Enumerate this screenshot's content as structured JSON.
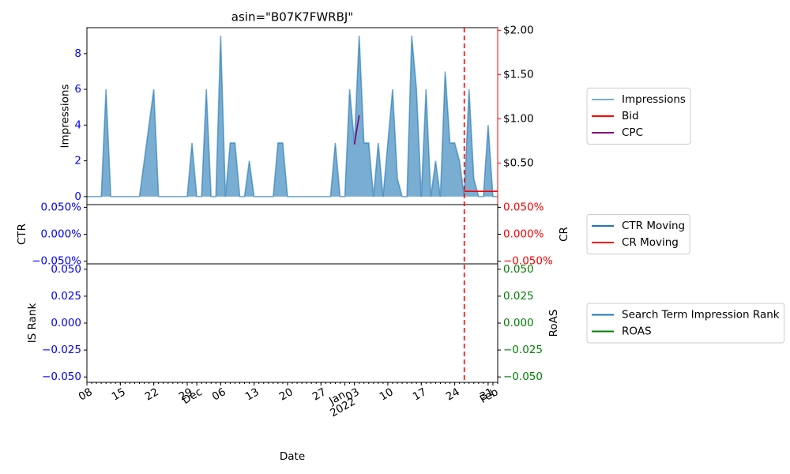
{
  "chart_data": [
    {
      "type": "area",
      "title": "asin=\"B07K7FWRBJ\"",
      "ylabel": "Impressions",
      "x": [
        "2021-11-08",
        "2021-11-09",
        "2021-11-10",
        "2021-11-11",
        "2021-11-12",
        "2021-11-13",
        "2021-11-14",
        "2021-11-15",
        "2021-11-16",
        "2021-11-17",
        "2021-11-18",
        "2021-11-19",
        "2021-11-20",
        "2021-11-21",
        "2021-11-22",
        "2021-11-23",
        "2021-11-24",
        "2021-11-25",
        "2021-11-26",
        "2021-11-27",
        "2021-11-28",
        "2021-11-29",
        "2021-11-30",
        "2021-12-01",
        "2021-12-02",
        "2021-12-03",
        "2021-12-04",
        "2021-12-05",
        "2021-12-06",
        "2021-12-07",
        "2021-12-08",
        "2021-12-09",
        "2021-12-10",
        "2021-12-11",
        "2021-12-12",
        "2021-12-13",
        "2021-12-14",
        "2021-12-15",
        "2021-12-16",
        "2021-12-17",
        "2021-12-18",
        "2021-12-19",
        "2021-12-20",
        "2021-12-21",
        "2021-12-22",
        "2021-12-23",
        "2021-12-24",
        "2021-12-25",
        "2021-12-26",
        "2021-12-27",
        "2021-12-28",
        "2021-12-29",
        "2021-12-30",
        "2021-12-31",
        "2022-01-01",
        "2022-01-02",
        "2022-01-03",
        "2022-01-04",
        "2022-01-05",
        "2022-01-06",
        "2022-01-07",
        "2022-01-08",
        "2022-01-09",
        "2022-01-10",
        "2022-01-11",
        "2022-01-12",
        "2022-01-13",
        "2022-01-14",
        "2022-01-15",
        "2022-01-16",
        "2022-01-17",
        "2022-01-18",
        "2022-01-19",
        "2022-01-20",
        "2022-01-21",
        "2022-01-22",
        "2022-01-23",
        "2022-01-24",
        "2022-01-25",
        "2022-01-26",
        "2022-01-27",
        "2022-01-28",
        "2022-01-29",
        "2022-01-30",
        "2022-01-31",
        "2022-02-01",
        "2022-02-02"
      ],
      "series": [
        {
          "name": "Impressions",
          "color": "#1f77b4",
          "values": [
            0,
            0,
            0,
            0,
            6,
            0,
            0,
            0,
            0,
            0,
            0,
            0,
            2,
            4,
            6,
            0,
            0,
            0,
            0,
            0,
            0,
            0,
            3,
            0,
            0,
            6,
            0,
            0,
            9,
            0,
            3,
            3,
            0,
            0,
            2,
            0,
            0,
            0,
            0,
            0,
            3,
            3,
            0,
            0,
            0,
            0,
            0,
            0,
            0,
            0,
            0,
            0,
            3,
            0,
            0,
            6,
            3,
            9,
            3,
            3,
            0,
            3,
            0,
            3,
            6,
            1,
            0,
            0,
            9,
            6,
            0,
            6,
            0,
            2,
            0,
            7,
            3,
            3,
            2,
            0,
            6,
            1,
            0,
            0,
            4,
            0,
            0
          ]
        },
        {
          "name": "Bid",
          "color": "red",
          "type": "line",
          "axis": "y2",
          "values": [
            null,
            null,
            null,
            null,
            null,
            null,
            null,
            null,
            null,
            null,
            null,
            null,
            null,
            null,
            null,
            null,
            null,
            null,
            null,
            null,
            null,
            null,
            null,
            null,
            null,
            null,
            null,
            null,
            null,
            null,
            null,
            null,
            null,
            null,
            null,
            null,
            null,
            null,
            null,
            null,
            null,
            null,
            null,
            null,
            null,
            null,
            null,
            null,
            null,
            null,
            null,
            null,
            null,
            null,
            null,
            null,
            null,
            null,
            null,
            null,
            null,
            null,
            null,
            null,
            null,
            null,
            null,
            null,
            null,
            null,
            null,
            null,
            null,
            null,
            null,
            null,
            null,
            null,
            null,
            0.18,
            0.18,
            0.18,
            0.18,
            0.18,
            0.18,
            0.18,
            0.18
          ]
        },
        {
          "name": "CPC",
          "color": "purple",
          "type": "line",
          "axis": "y2",
          "values": [
            null,
            null,
            null,
            null,
            null,
            null,
            null,
            null,
            null,
            null,
            null,
            null,
            null,
            null,
            null,
            null,
            null,
            null,
            null,
            null,
            null,
            null,
            null,
            null,
            null,
            null,
            null,
            null,
            null,
            null,
            null,
            null,
            null,
            null,
            null,
            null,
            null,
            null,
            null,
            null,
            null,
            null,
            null,
            null,
            null,
            null,
            null,
            null,
            null,
            null,
            null,
            null,
            null,
            null,
            null,
            null,
            0.71,
            1.04,
            null,
            null,
            null,
            null,
            null,
            null,
            null,
            null,
            null,
            null,
            null,
            null,
            null,
            null,
            null,
            null,
            null,
            null,
            null,
            null,
            null,
            null,
            null,
            null,
            null,
            null,
            null,
            null,
            null
          ]
        }
      ],
      "ylim": [
        -0.45,
        9.45
      ],
      "yticks": [
        0,
        2,
        4,
        6,
        8
      ],
      "y2lim": [
        0.03,
        2.03
      ],
      "y2ticks": [
        {
          "value": 0.5,
          "label": "$0.50"
        },
        {
          "value": 1,
          "label": "$1.00"
        },
        {
          "value": 1.5,
          "label": "$1.50"
        },
        {
          "value": 2,
          "label": "$2.00"
        }
      ],
      "vline": "2022-01-26",
      "vline_color": "red",
      "legend": "right"
    },
    {
      "type": "line",
      "ylabel": "CTR",
      "y2label": "CR",
      "series": [
        {
          "name": "CTR Moving",
          "color": "#1f77b4",
          "values": [
            null,
            null,
            null,
            null,
            null,
            null,
            null,
            null,
            null,
            null,
            null,
            null,
            null,
            null,
            null,
            null,
            null,
            null,
            null,
            null,
            null,
            null,
            null,
            null,
            null,
            null,
            null,
            null,
            null,
            null,
            null,
            null,
            null,
            null,
            null,
            null,
            null,
            null,
            null,
            null,
            null,
            null,
            null,
            null,
            null,
            null,
            null,
            null,
            null,
            null,
            null,
            null,
            null,
            null,
            null,
            null,
            null,
            null,
            null,
            null,
            null,
            null,
            null,
            null,
            null,
            null,
            null,
            null,
            null,
            null,
            null,
            null,
            null,
            null,
            null,
            null,
            null,
            null,
            null,
            null,
            null,
            null,
            null,
            null,
            null,
            null,
            null
          ]
        },
        {
          "name": "CR Moving",
          "color": "red",
          "axis": "y2",
          "values": [
            null,
            null,
            null,
            null,
            null,
            null,
            null,
            null,
            null,
            null,
            null,
            null,
            null,
            null,
            null,
            null,
            null,
            null,
            null,
            null,
            null,
            null,
            null,
            null,
            null,
            null,
            null,
            null,
            null,
            null,
            null,
            null,
            null,
            null,
            null,
            null,
            null,
            null,
            null,
            null,
            null,
            null,
            null,
            null,
            null,
            null,
            null,
            null,
            null,
            null,
            null,
            null,
            null,
            null,
            null,
            null,
            null,
            null,
            null,
            null,
            null,
            null,
            null,
            null,
            null,
            null,
            null,
            null,
            null,
            null,
            null,
            null,
            null,
            null,
            null,
            null,
            null,
            null,
            null,
            null,
            null,
            null,
            null,
            null,
            null,
            null,
            null
          ]
        }
      ],
      "ylim": [
        -0.055,
        0.055
      ],
      "yticks": [
        {
          "value": -0.05,
          "label": "−0.050%"
        },
        {
          "value": 0,
          "label": "0.000%"
        },
        {
          "value": 0.05,
          "label": "0.050%"
        }
      ],
      "y2lim": [
        -0.055,
        0.055
      ],
      "y2ticks": [
        {
          "value": -0.05,
          "label": "−0.050%"
        },
        {
          "value": 0,
          "label": "0.000%"
        },
        {
          "value": 0.05,
          "label": "0.050%"
        }
      ],
      "legend": "right"
    },
    {
      "type": "line",
      "ylabel": "IS Rank",
      "y2label": "RoAS",
      "xlabel": "Date",
      "series": [
        {
          "name": "Search Term Impression Rank",
          "color": "#1f77b4",
          "values": [
            null,
            null,
            null,
            null,
            null,
            null,
            null,
            null,
            null,
            null,
            null,
            null,
            null,
            null,
            null,
            null,
            null,
            null,
            null,
            null,
            null,
            null,
            null,
            null,
            null,
            null,
            null,
            null,
            null,
            null,
            null,
            null,
            null,
            null,
            null,
            null,
            null,
            null,
            null,
            null,
            null,
            null,
            null,
            null,
            null,
            null,
            null,
            null,
            null,
            null,
            null,
            null,
            null,
            null,
            null,
            null,
            null,
            null,
            null,
            null,
            null,
            null,
            null,
            null,
            null,
            null,
            null,
            null,
            null,
            null,
            null,
            null,
            null,
            null,
            null,
            null,
            null,
            null,
            null,
            null,
            null,
            null,
            null,
            null,
            null,
            null,
            null
          ]
        },
        {
          "name": "ROAS",
          "color": "green",
          "axis": "y2",
          "values": [
            null,
            null,
            null,
            null,
            null,
            null,
            null,
            null,
            null,
            null,
            null,
            null,
            null,
            null,
            null,
            null,
            null,
            null,
            null,
            null,
            null,
            null,
            null,
            null,
            null,
            null,
            null,
            null,
            null,
            null,
            null,
            null,
            null,
            null,
            null,
            null,
            null,
            null,
            null,
            null,
            null,
            null,
            null,
            null,
            null,
            null,
            null,
            null,
            null,
            null,
            null,
            null,
            null,
            null,
            null,
            null,
            null,
            null,
            null,
            null,
            null,
            null,
            null,
            null,
            null,
            null,
            null,
            null,
            null,
            null,
            null,
            null,
            null,
            null,
            null,
            null,
            null,
            null,
            null,
            null,
            null,
            null,
            null,
            null,
            null,
            null,
            null
          ]
        }
      ],
      "ylim": [
        -0.055,
        0.055
      ],
      "yticks": [
        {
          "value": -0.05,
          "label": "−0.050"
        },
        {
          "value": -0.025,
          "label": "−0.025"
        },
        {
          "value": 0,
          "label": "0.000"
        },
        {
          "value": 0.025,
          "label": "0.025"
        },
        {
          "value": 0.05,
          "label": "0.050"
        }
      ],
      "y2lim": [
        -0.055,
        0.055
      ],
      "y2ticks": [
        {
          "value": -0.05,
          "label": "−0.050"
        },
        {
          "value": -0.025,
          "label": "−0.025"
        },
        {
          "value": 0,
          "label": "0.000"
        },
        {
          "value": 0.025,
          "label": "0.025"
        },
        {
          "value": 0.05,
          "label": "0.050"
        }
      ],
      "xlim": [
        "2021-11-08",
        "2022-02-02"
      ],
      "xticks": [
        {
          "value": "2021-11-08",
          "label": "08"
        },
        {
          "value": "2021-11-15",
          "label": "15"
        },
        {
          "value": "2021-11-22",
          "label": "22"
        },
        {
          "value": "2021-11-29",
          "label": "29"
        },
        {
          "value": "2021-12-01",
          "label": "Dec"
        },
        {
          "value": "2021-12-06",
          "label": "06"
        },
        {
          "value": "2021-12-13",
          "label": "13"
        },
        {
          "value": "2021-12-20",
          "label": "20"
        },
        {
          "value": "2021-12-27",
          "label": "27"
        },
        {
          "value": "2022-01-01",
          "label": "Jan\n2022"
        },
        {
          "value": "2022-01-03",
          "label": "03"
        },
        {
          "value": "2022-01-10",
          "label": "10"
        },
        {
          "value": "2022-01-17",
          "label": "17"
        },
        {
          "value": "2022-01-24",
          "label": "24"
        },
        {
          "value": "2022-01-31",
          "label": "31"
        },
        {
          "value": "2022-02-01",
          "label": "Feb"
        }
      ],
      "legend": "right"
    }
  ]
}
